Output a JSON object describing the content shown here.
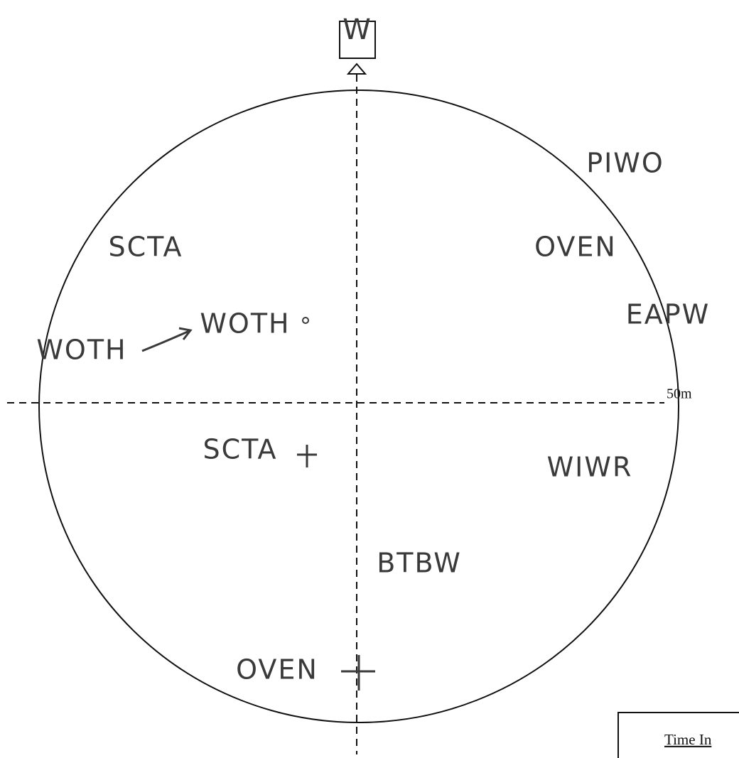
{
  "header": {
    "direction": "W"
  },
  "scale_label": "50m",
  "birds": [
    {
      "label": "PIWO"
    },
    {
      "label": "SCTA"
    },
    {
      "label": "OVEN"
    },
    {
      "label": "WOTH"
    },
    {
      "label": "WOTH"
    },
    {
      "label": "EAPW"
    },
    {
      "label": "SCTA"
    },
    {
      "label": "WIWR"
    },
    {
      "label": "BTBW"
    },
    {
      "label": "OVEN"
    }
  ],
  "table": {
    "header": "Time In"
  }
}
